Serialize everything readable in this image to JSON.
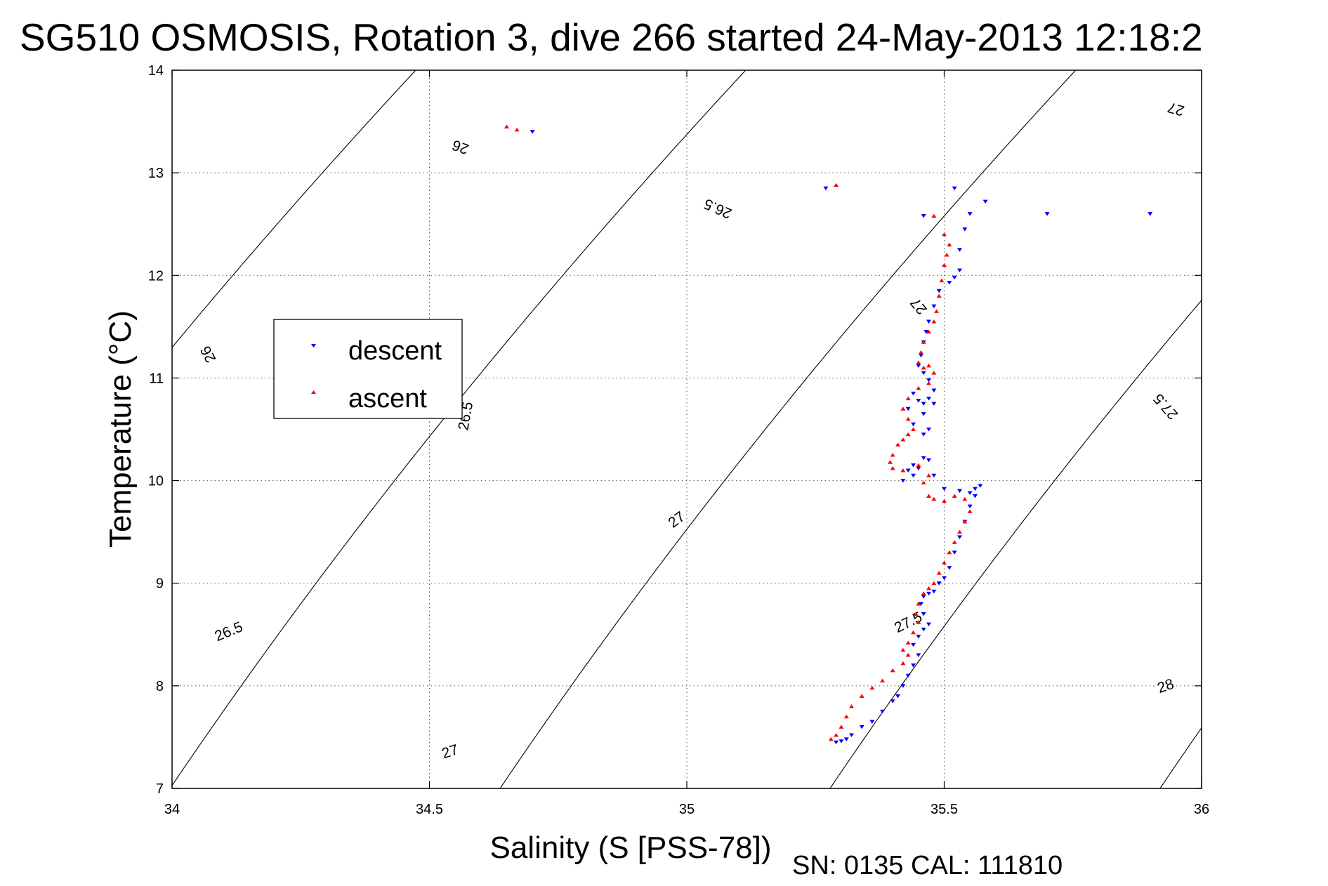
{
  "chart_data": {
    "type": "scatter",
    "title": "SG510 OSMOSIS, Rotation 3, dive 266 started 24-May-2013 12:18:2",
    "xlabel": "Salinity (S [PSS-78])",
    "ylabel": "Temperature (°C)",
    "footer": "SN: 0135  CAL: 111810",
    "xlim": [
      34,
      36
    ],
    "ylim": [
      7,
      14
    ],
    "xticks": [
      "34",
      "34.5",
      "35",
      "35.5",
      "36"
    ],
    "yticks": [
      "7",
      "8",
      "9",
      "10",
      "11",
      "12",
      "13",
      "14"
    ],
    "grid": true,
    "legend": {
      "placement": "left",
      "entries": [
        "descent",
        "ascent"
      ]
    },
    "contour_levels": [
      26,
      26.5,
      27,
      27.5,
      28
    ],
    "contour_labels": [
      {
        "text": "26",
        "x": 34.56,
        "y": 13.25
      },
      {
        "text": "26",
        "x": 34.07,
        "y": 11.23
      },
      {
        "text": "26.5",
        "x": 35.06,
        "y": 12.65
      },
      {
        "text": "26.5",
        "x": 34.57,
        "y": 10.63
      },
      {
        "text": "26.5",
        "x": 34.11,
        "y": 8.53
      },
      {
        "text": "27",
        "x": 35.95,
        "y": 13.62
      },
      {
        "text": "27",
        "x": 35.45,
        "y": 11.7
      },
      {
        "text": "27",
        "x": 34.98,
        "y": 9.62
      },
      {
        "text": "27",
        "x": 34.54,
        "y": 7.36
      },
      {
        "text": "27.5",
        "x": 35.93,
        "y": 10.72
      },
      {
        "text": "27.5",
        "x": 35.43,
        "y": 8.62
      },
      {
        "text": "28",
        "x": 35.93,
        "y": 8.0
      }
    ],
    "series": [
      {
        "name": "descent",
        "color": "#0000ff",
        "x": [
          34.7,
          35.27,
          35.52,
          35.46,
          35.58,
          35.7,
          35.9,
          35.55,
          35.54,
          35.53,
          35.53,
          35.52,
          35.51,
          35.49,
          35.48,
          35.47,
          35.465,
          35.46,
          35.455,
          35.45,
          35.46,
          35.47,
          35.48,
          35.47,
          35.46,
          35.45,
          35.44,
          35.43,
          35.44,
          35.46,
          35.48,
          35.47,
          35.46,
          35.47,
          35.45,
          35.44,
          35.43,
          35.42,
          35.44,
          35.46,
          35.48,
          35.5,
          35.53,
          35.55,
          35.56,
          35.57,
          35.56,
          35.55,
          35.54,
          35.53,
          35.52,
          35.51,
          35.5,
          35.49,
          35.48,
          35.47,
          35.46,
          35.455,
          35.46,
          35.47,
          35.46,
          35.45,
          35.44,
          35.45,
          35.44,
          35.43,
          35.42,
          35.41,
          35.4,
          35.38,
          35.36,
          35.34,
          35.32,
          35.31,
          35.3,
          35.29
        ],
        "y": [
          13.4,
          12.85,
          12.85,
          12.58,
          12.72,
          12.6,
          12.6,
          12.6,
          12.45,
          12.25,
          12.05,
          11.98,
          11.93,
          11.85,
          11.7,
          11.55,
          11.45,
          11.35,
          11.22,
          11.12,
          11.05,
          10.98,
          10.88,
          10.8,
          10.75,
          10.78,
          10.85,
          10.7,
          10.55,
          10.65,
          10.75,
          10.5,
          10.45,
          10.2,
          10.12,
          10.05,
          10.1,
          10.0,
          10.15,
          10.22,
          10.05,
          9.92,
          9.9,
          9.88,
          9.92,
          9.95,
          9.85,
          9.75,
          9.6,
          9.45,
          9.3,
          9.15,
          9.05,
          9.0,
          8.92,
          8.9,
          8.87,
          8.8,
          8.7,
          8.6,
          8.55,
          8.48,
          8.4,
          8.3,
          8.2,
          8.1,
          8.0,
          7.9,
          7.85,
          7.75,
          7.65,
          7.6,
          7.52,
          7.48,
          7.46,
          7.45
        ]
      },
      {
        "name": "ascent",
        "color": "#ff0000",
        "x": [
          34.65,
          34.67,
          35.29,
          35.48,
          35.5,
          35.51,
          35.505,
          35.5,
          35.495,
          35.49,
          35.485,
          35.48,
          35.47,
          35.46,
          35.455,
          35.45,
          35.46,
          35.47,
          35.48,
          35.47,
          35.45,
          35.43,
          35.42,
          35.43,
          35.44,
          35.43,
          35.42,
          35.41,
          35.4,
          35.395,
          35.4,
          35.42,
          35.45,
          35.47,
          35.46,
          35.47,
          35.48,
          35.5,
          35.52,
          35.54,
          35.55,
          35.54,
          35.53,
          35.52,
          35.51,
          35.5,
          35.49,
          35.48,
          35.47,
          35.46,
          35.45,
          35.445,
          35.45,
          35.44,
          35.43,
          35.42,
          35.43,
          35.42,
          35.4,
          35.38,
          35.36,
          35.34,
          35.32,
          35.31,
          35.3,
          35.29,
          35.28
        ],
        "y": [
          13.45,
          13.42,
          12.88,
          12.58,
          12.4,
          12.3,
          12.2,
          12.1,
          11.95,
          11.8,
          11.65,
          11.55,
          11.45,
          11.35,
          11.25,
          11.15,
          11.1,
          11.12,
          11.05,
          10.95,
          10.9,
          10.8,
          10.7,
          10.6,
          10.5,
          10.45,
          10.4,
          10.35,
          10.25,
          10.18,
          10.12,
          10.1,
          10.15,
          10.05,
          9.98,
          9.85,
          9.82,
          9.8,
          9.85,
          9.82,
          9.7,
          9.6,
          9.5,
          9.4,
          9.3,
          9.2,
          9.1,
          9.0,
          8.95,
          8.9,
          8.8,
          8.7,
          8.62,
          8.52,
          8.42,
          8.35,
          8.3,
          8.22,
          8.15,
          8.05,
          7.98,
          7.9,
          7.8,
          7.7,
          7.6,
          7.52,
          7.48
        ]
      }
    ]
  }
}
